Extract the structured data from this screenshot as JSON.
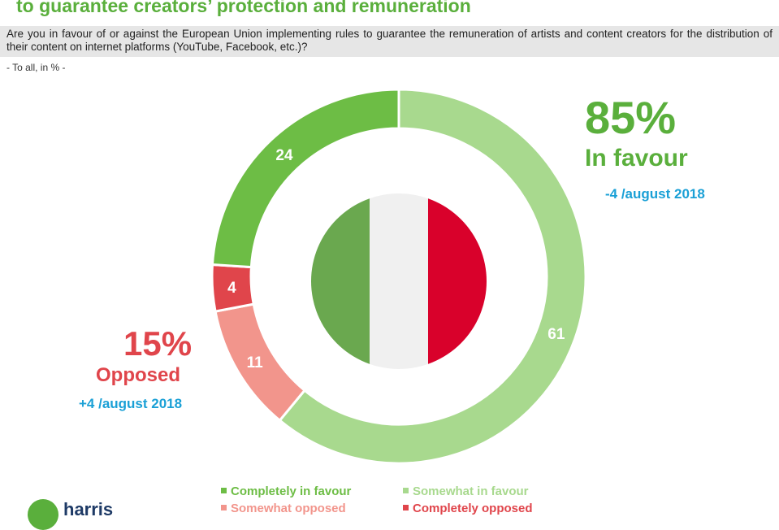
{
  "header": {
    "title": "to guarantee creators’ protection and remuneration",
    "question": "Are you in favour of or against the European Union implementing rules to guarantee the remuneration of artists and content creators for the distribution of their content on internet platforms (YouTube, Facebook, etc.)?",
    "base": "- To all, in % -"
  },
  "summary": {
    "favour_pct": "85%",
    "favour_label": "In favour",
    "favour_change": "-4 /august 2018",
    "opposed_pct": "15%",
    "opposed_label": "Opposed",
    "opposed_change": "+4 /august 2018"
  },
  "colors": {
    "completely_in_favour": "#6dbd45",
    "somewhat_in_favour": "#a8d98e",
    "somewhat_opposed": "#f2958c",
    "completely_opposed": "#e0454b",
    "favour_text": "#5aaf3c",
    "opposed_text": "#e0454b",
    "change_text": "#1aa0d6",
    "flag_green": "#6aa84f",
    "flag_white": "#f0f0f0",
    "flag_red": "#d9012b"
  },
  "flag_icon": "italy-flag",
  "logo": {
    "text": "harris"
  },
  "chart_data": {
    "type": "pie",
    "style": "donut",
    "unit": "%",
    "slices": [
      {
        "name": "Somewhat in favour",
        "value": 61,
        "color": "#a8d98e"
      },
      {
        "name": "Somewhat opposed",
        "value": 11,
        "color": "#f2958c"
      },
      {
        "name": "Completely opposed",
        "value": 4,
        "color": "#e0454b"
      },
      {
        "name": "Completely in favour",
        "value": 24,
        "color": "#6dbd45"
      }
    ],
    "legend": [
      {
        "name": "Completely in favour",
        "color": "#6dbd45"
      },
      {
        "name": "Somewhat in favour",
        "color": "#a8d98e"
      },
      {
        "name": "Somewhat opposed",
        "color": "#f2958c"
      },
      {
        "name": "Completely opposed",
        "color": "#e0454b"
      }
    ],
    "legend_position": "bottom"
  }
}
